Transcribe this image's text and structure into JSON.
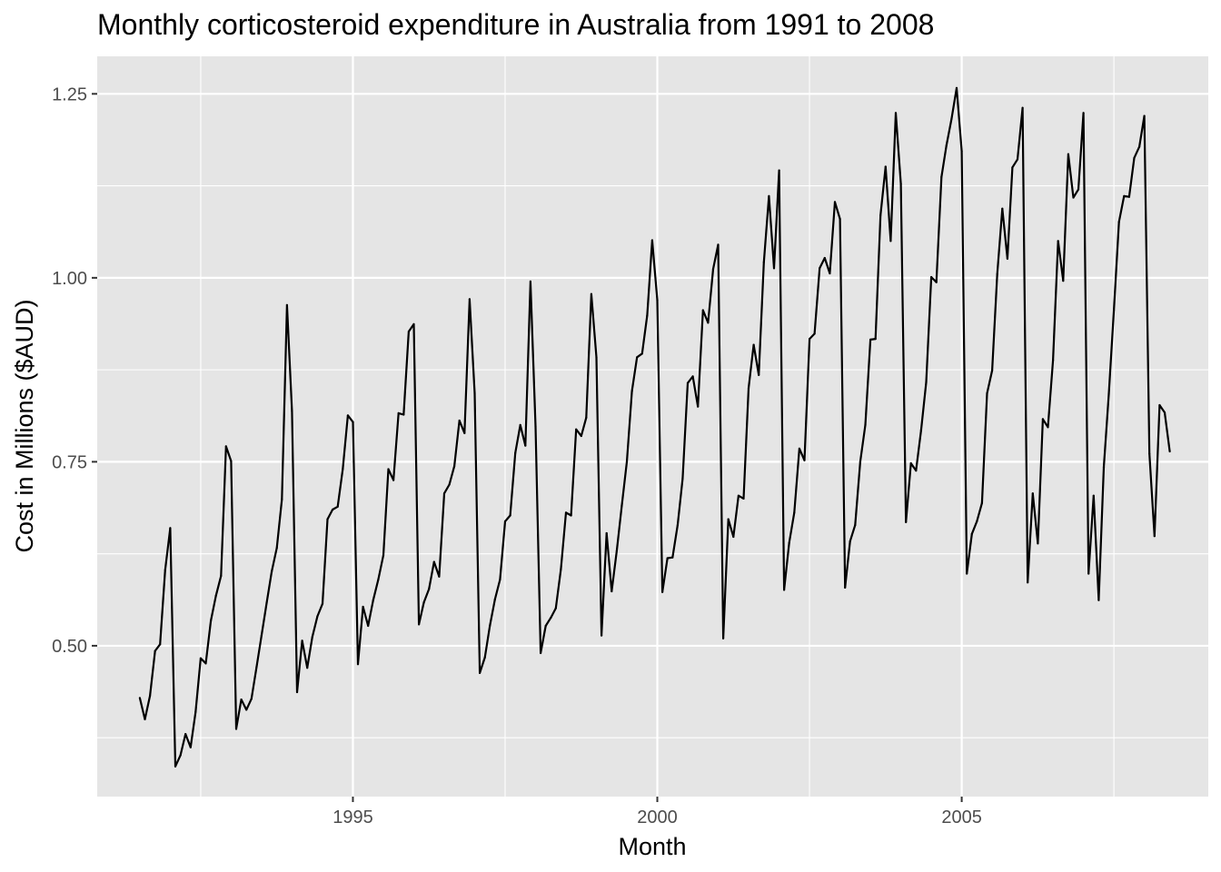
{
  "chart_data": {
    "type": "line",
    "title": "Monthly corticosteroid expenditure in Australia from 1991 to 2008",
    "xlabel": "Month",
    "ylabel": "Cost in Millions ($AUD)",
    "xlim": [
      1990.8,
      2009.05
    ],
    "ylim": [
      0.295,
      1.301
    ],
    "x_ticks": [
      1995,
      2000,
      2005
    ],
    "x_tick_labels": [
      "1995",
      "2000",
      "2005"
    ],
    "x_minor": [
      1992.5,
      1997.5,
      2002.5,
      2007.5
    ],
    "y_ticks": [
      0.5,
      0.75,
      1.0,
      1.25
    ],
    "y_tick_labels": [
      "0.50",
      "0.75",
      "1.00",
      "1.25"
    ],
    "y_minor": [
      0.375,
      0.625,
      0.875,
      1.125
    ],
    "series": [
      {
        "name": "Cost",
        "color": "#000000",
        "start": 1991.5,
        "step": 0.0833333,
        "values": [
          0.429,
          0.4,
          0.432,
          0.493,
          0.502,
          0.603,
          0.66,
          0.336,
          0.351,
          0.38,
          0.362,
          0.41,
          0.483,
          0.476,
          0.534,
          0.568,
          0.595,
          0.771,
          0.751,
          0.387,
          0.427,
          0.413,
          0.428,
          0.471,
          0.514,
          0.558,
          0.601,
          0.633,
          0.699,
          0.963,
          0.819,
          0.437,
          0.507,
          0.47,
          0.512,
          0.54,
          0.557,
          0.672,
          0.685,
          0.689,
          0.74,
          0.813,
          0.804,
          0.475,
          0.553,
          0.527,
          0.562,
          0.59,
          0.623,
          0.74,
          0.725,
          0.816,
          0.814,
          0.927,
          0.937,
          0.529,
          0.559,
          0.577,
          0.614,
          0.594,
          0.707,
          0.719,
          0.744,
          0.806,
          0.789,
          0.971,
          0.843,
          0.463,
          0.484,
          0.527,
          0.563,
          0.59,
          0.669,
          0.677,
          0.762,
          0.8,
          0.772,
          0.995,
          0.798,
          0.49,
          0.527,
          0.538,
          0.551,
          0.604,
          0.681,
          0.677,
          0.794,
          0.785,
          0.81,
          0.978,
          0.892,
          0.514,
          0.653,
          0.574,
          0.629,
          0.69,
          0.75,
          0.846,
          0.892,
          0.897,
          0.949,
          1.051,
          0.97,
          0.573,
          0.619,
          0.62,
          0.664,
          0.727,
          0.857,
          0.866,
          0.825,
          0.956,
          0.939,
          1.012,
          1.045,
          0.51,
          0.672,
          0.648,
          0.704,
          0.7,
          0.85,
          0.909,
          0.868,
          1.021,
          1.111,
          1.013,
          1.146,
          0.576,
          0.64,
          0.681,
          0.768,
          0.752,
          0.917,
          0.924,
          1.013,
          1.027,
          1.006,
          1.103,
          1.08,
          0.579,
          0.642,
          0.664,
          0.75,
          0.8,
          0.916,
          0.917,
          1.085,
          1.151,
          1.05,
          1.224,
          1.128,
          0.668,
          0.748,
          0.738,
          0.793,
          0.858,
          1.001,
          0.994,
          1.137,
          1.18,
          1.216,
          1.258,
          1.172,
          0.598,
          0.652,
          0.669,
          0.694,
          0.843,
          0.874,
          1.005,
          1.094,
          1.026,
          1.15,
          1.161,
          1.231,
          0.586,
          0.707,
          0.639,
          0.808,
          0.797,
          0.888,
          1.05,
          0.996,
          1.168,
          1.109,
          1.12,
          1.224,
          0.598,
          0.704,
          0.562,
          0.743,
          0.842,
          0.956,
          1.076,
          1.111,
          1.11,
          1.163,
          1.178,
          1.22,
          0.761,
          0.649,
          0.827,
          0.817,
          0.764
        ]
      }
    ]
  }
}
